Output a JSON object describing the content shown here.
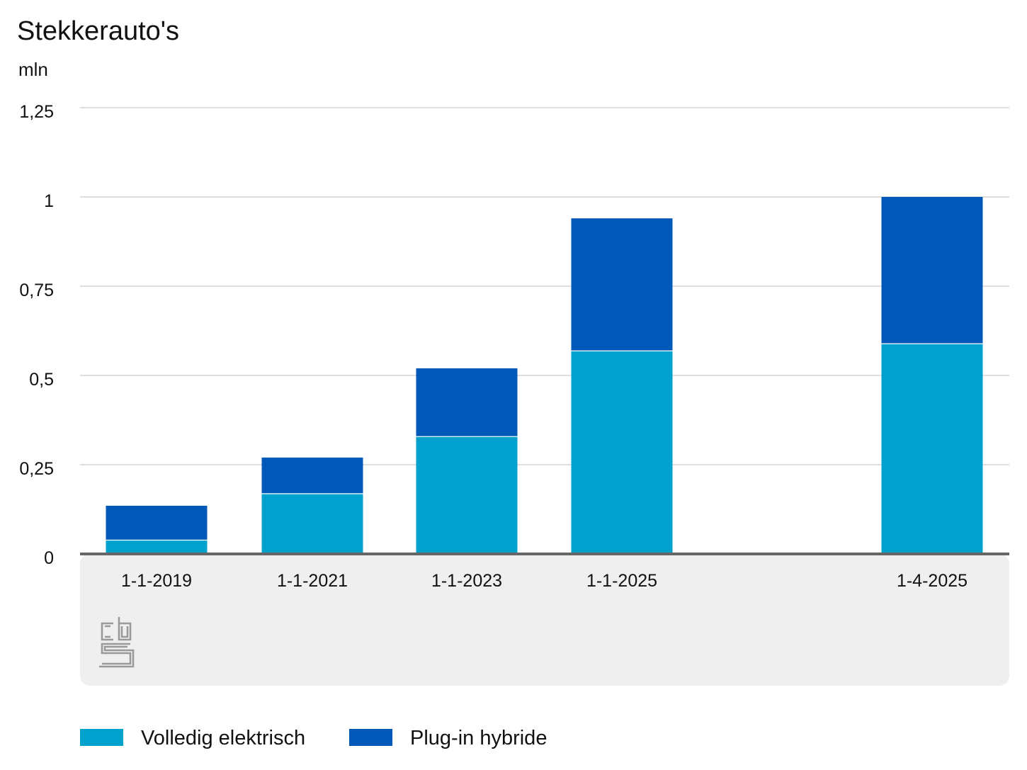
{
  "colors": {
    "electric": "#00a1cd",
    "plugin": "#0058b8",
    "grid": "#cccccc",
    "baseline": "#666666",
    "axis_band": "#efefef",
    "logo": "#9a9a9a"
  },
  "logo": {
    "name": "cbs-logo"
  },
  "chart_data": {
    "type": "bar",
    "stacked": true,
    "title": "Stekkerauto's",
    "unit": "mln",
    "categories": [
      "1-1-2019",
      "1-1-2021",
      "1-1-2023",
      "1-1-2025",
      "1-4-2025"
    ],
    "series": [
      {
        "name": "Volledig elektrisch",
        "color": "#00a1cd",
        "values": [
          0.04,
          0.17,
          0.33,
          0.57,
          0.59
        ]
      },
      {
        "name": "Plug-in hybride",
        "color": "#0058b8",
        "values": [
          0.095,
          0.1,
          0.19,
          0.37,
          0.41
        ]
      }
    ],
    "ylim": [
      0,
      1.25
    ],
    "yticks": [
      0,
      0.25,
      0.5,
      0.75,
      1,
      1.25
    ],
    "ytick_labels": [
      "0",
      "0,25",
      "0,5",
      "0,75",
      "1",
      "1,25"
    ],
    "grid": true,
    "legend": "bottom-left"
  }
}
